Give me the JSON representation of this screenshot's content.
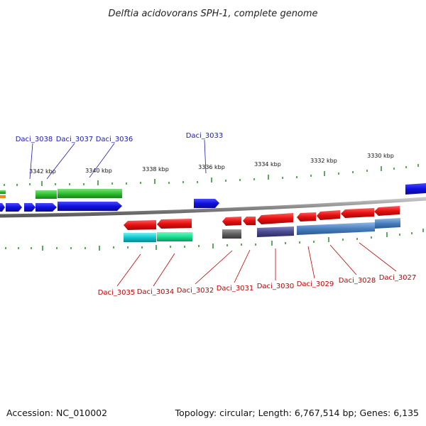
{
  "title": "Delftia acidovorans SPH-1, complete genome",
  "footer": {
    "accession": "Accession: NC_010002",
    "summary": "Topology: circular; Length: 6,767,514 bp; Genes: 6,135"
  },
  "colors": {
    "forward_gene": "#1010e0",
    "reverse_gene": "#e81010",
    "backbone": "#8a8a8a",
    "tick": "#2a8a2a",
    "label_top": "#1a1ab0",
    "label_bottom": "#c00000"
  },
  "scale_labels": [
    "3342 kbp",
    "3340 kbp",
    "3338 kbp",
    "3336 kbp",
    "3334 kbp",
    "3332 kbp",
    "3330 kbp"
  ],
  "forward_labels": [
    "Daci_3038",
    "Daci_3037",
    "Daci_3036",
    "Daci_3033"
  ],
  "reverse_labels": [
    "Daci_3035",
    "Daci_3034",
    "Daci_3032",
    "Daci_3031",
    "Daci_3030",
    "Daci_3029",
    "Daci_3028",
    "Daci_3027"
  ]
}
